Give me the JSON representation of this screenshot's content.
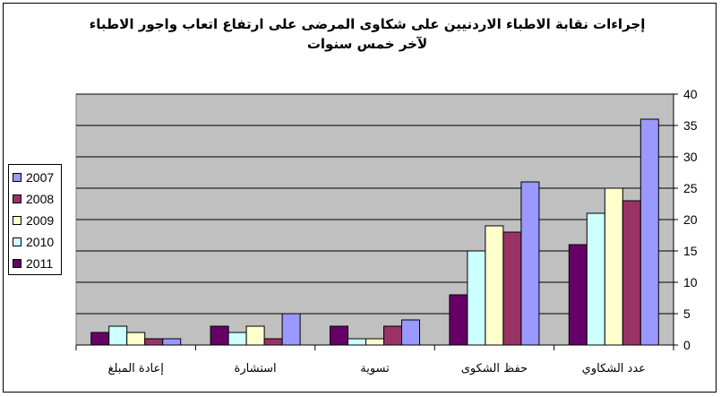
{
  "chart_data": {
    "type": "bar",
    "title": "إجراءات نقابة الاطباء الاردنيين على شكاوى المرضى على ارتفاع اتعاب واجور الاطباء لآخر خمس سنوات",
    "categories": [
      "إعادة المبلغ",
      "استشارة",
      "تسوية",
      "حفظ الشكوى",
      "عدد الشكاوي"
    ],
    "series": [
      {
        "name": "2011",
        "color": "#660066",
        "values": [
          2,
          3,
          3,
          8,
          16
        ]
      },
      {
        "name": "2010",
        "color": "#CCFFFF",
        "values": [
          3,
          2,
          1,
          15,
          21
        ]
      },
      {
        "name": "2009",
        "color": "#FFFFCC",
        "values": [
          2,
          3,
          1,
          19,
          25
        ]
      },
      {
        "name": "2008",
        "color": "#993366",
        "values": [
          1,
          1,
          3,
          18,
          23
        ]
      },
      {
        "name": "2007",
        "color": "#9999FF",
        "values": [
          1,
          5,
          4,
          26,
          36
        ]
      }
    ],
    "legend_order": [
      "2007",
      "2008",
      "2009",
      "2010",
      "2011"
    ],
    "ylim": [
      0,
      40
    ],
    "yticks": [
      0,
      5,
      10,
      15,
      20,
      25,
      30,
      35,
      40
    ],
    "y_axis_position": "right",
    "grid": true,
    "plot_background": "#C0C0C0",
    "legend_position": "left"
  }
}
